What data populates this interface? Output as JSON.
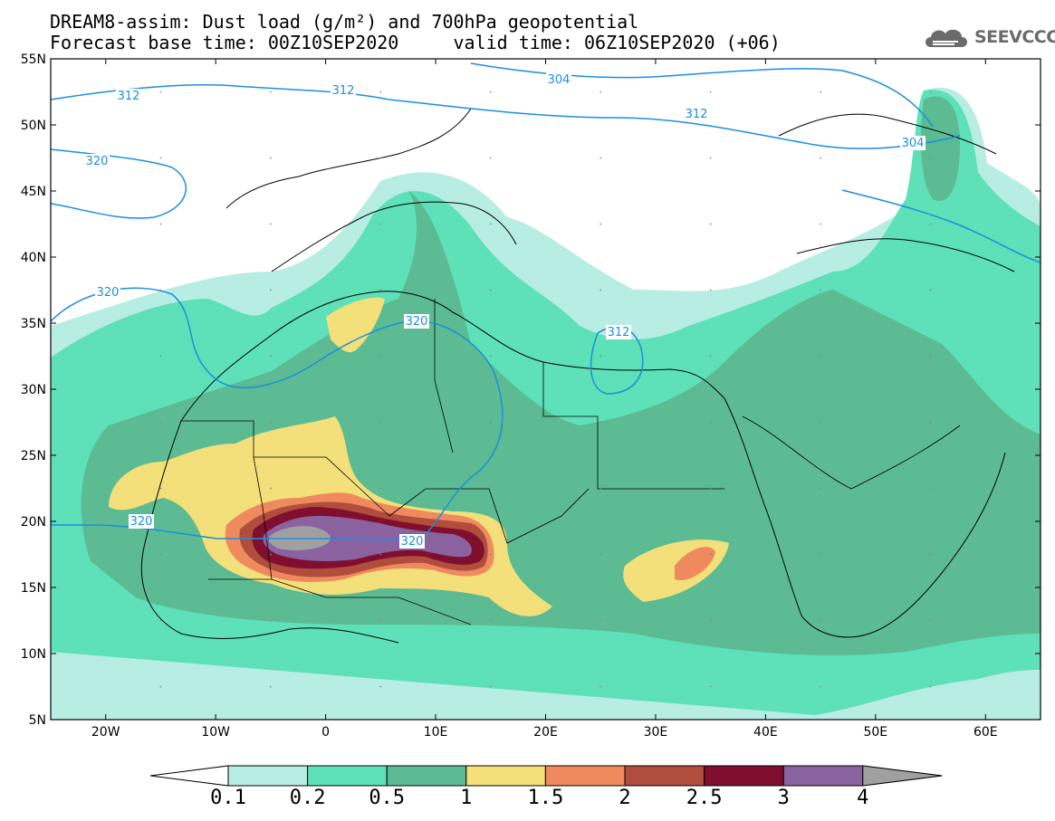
{
  "title_line1": "DREAM8-assim: Dust load (g/m²) and 700hPa geopotential",
  "title_line2": "Forecast base time: 00Z10SEP2020     valid time: 06Z10SEP2020 (+06)",
  "logo_text": "SEEVCCC",
  "lat_labels": [
    "55N",
    "50N",
    "45N",
    "40N",
    "35N",
    "30N",
    "25N",
    "20N",
    "15N",
    "10N",
    "5N"
  ],
  "lon_labels": [
    "20W",
    "10W",
    "0",
    "10E",
    "20E",
    "30E",
    "40E",
    "50E",
    "60E"
  ],
  "contours": [
    {
      "label": "312",
      "value": 312
    },
    {
      "label": "312",
      "value": 312
    },
    {
      "label": "304",
      "value": 304
    },
    {
      "label": "312",
      "value": 312
    },
    {
      "label": "304",
      "value": 304
    },
    {
      "label": "320",
      "value": 320
    },
    {
      "label": "320",
      "value": 320
    },
    {
      "label": "320",
      "value": 320
    },
    {
      "label": "312",
      "value": 312
    },
    {
      "label": "320",
      "value": 320
    },
    {
      "label": "320",
      "value": 320
    }
  ],
  "colorbar": {
    "labels": [
      "0.1",
      "0.2",
      "0.5",
      "1",
      "1.5",
      "2",
      "2.5",
      "3",
      "4"
    ],
    "colors": [
      "#b8ede4",
      "#5ee0b8",
      "#5cbb92",
      "#f3e07a",
      "#ef8a5e",
      "#b04d3c",
      "#800e2e",
      "#8a62a0",
      "#a0a0a0"
    ]
  },
  "map_colors": {
    "background": "#ffffff",
    "contour": "#1a8fe0",
    "borders": "#000000"
  }
}
